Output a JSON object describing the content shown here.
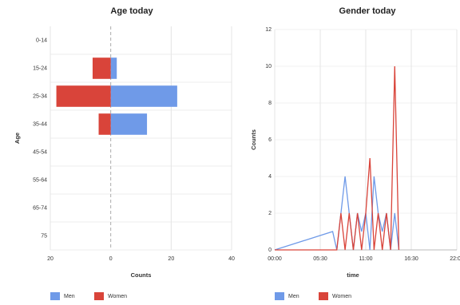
{
  "chart_data": [
    {
      "type": "bar",
      "horizontal": true,
      "title": "Age today",
      "categories": [
        "0-14",
        "15-24",
        "25-34",
        "35-44",
        "45-54",
        "55-64",
        "65-74",
        "75"
      ],
      "series": [
        {
          "name": "Men",
          "color": "#6f9ae8",
          "values": [
            0,
            2,
            22,
            12,
            0,
            0,
            0,
            0
          ]
        },
        {
          "name": "Women",
          "color": "#d9443a",
          "values": [
            0,
            -6,
            -18,
            -4,
            0,
            0,
            0,
            0
          ]
        }
      ],
      "xlim": [
        -20,
        40
      ],
      "xticks": [
        {
          "value": -20,
          "label": "20"
        },
        0,
        20,
        40
      ],
      "xlabel": "Counts",
      "ylabel": "Age",
      "grid": true
    },
    {
      "type": "line",
      "title": "Gender today",
      "x": [
        0,
        7,
        7.5,
        8,
        8.5,
        9,
        9.5,
        10,
        10.5,
        11,
        11.5,
        12,
        12.5,
        13,
        13.5,
        14,
        14.5,
        15
      ],
      "series": [
        {
          "name": "Men",
          "color": "#6f9ae8",
          "values": [
            0,
            1,
            0,
            2,
            4,
            2,
            0,
            2,
            1,
            2,
            0,
            4,
            2,
            1,
            2,
            0,
            2,
            0
          ]
        },
        {
          "name": "Women",
          "color": "#d9443a",
          "values": [
            0,
            0,
            0,
            2,
            0,
            2,
            0,
            2,
            0,
            2,
            5,
            0,
            2,
            0,
            2,
            0,
            10,
            0
          ]
        }
      ],
      "xlim": [
        0,
        22
      ],
      "xticks": [
        {
          "value": 0,
          "label": "00:00"
        },
        {
          "value": 5.5,
          "label": "05:30"
        },
        {
          "value": 11,
          "label": "11:00"
        },
        {
          "value": 16.5,
          "label": "16:30"
        },
        {
          "value": 22,
          "label": "22:00"
        }
      ],
      "ylim": [
        0,
        12
      ],
      "yticks": [
        0,
        2,
        4,
        6,
        8,
        10,
        12
      ],
      "xlabel": "time",
      "ylabel": "Counts",
      "grid": true
    }
  ]
}
